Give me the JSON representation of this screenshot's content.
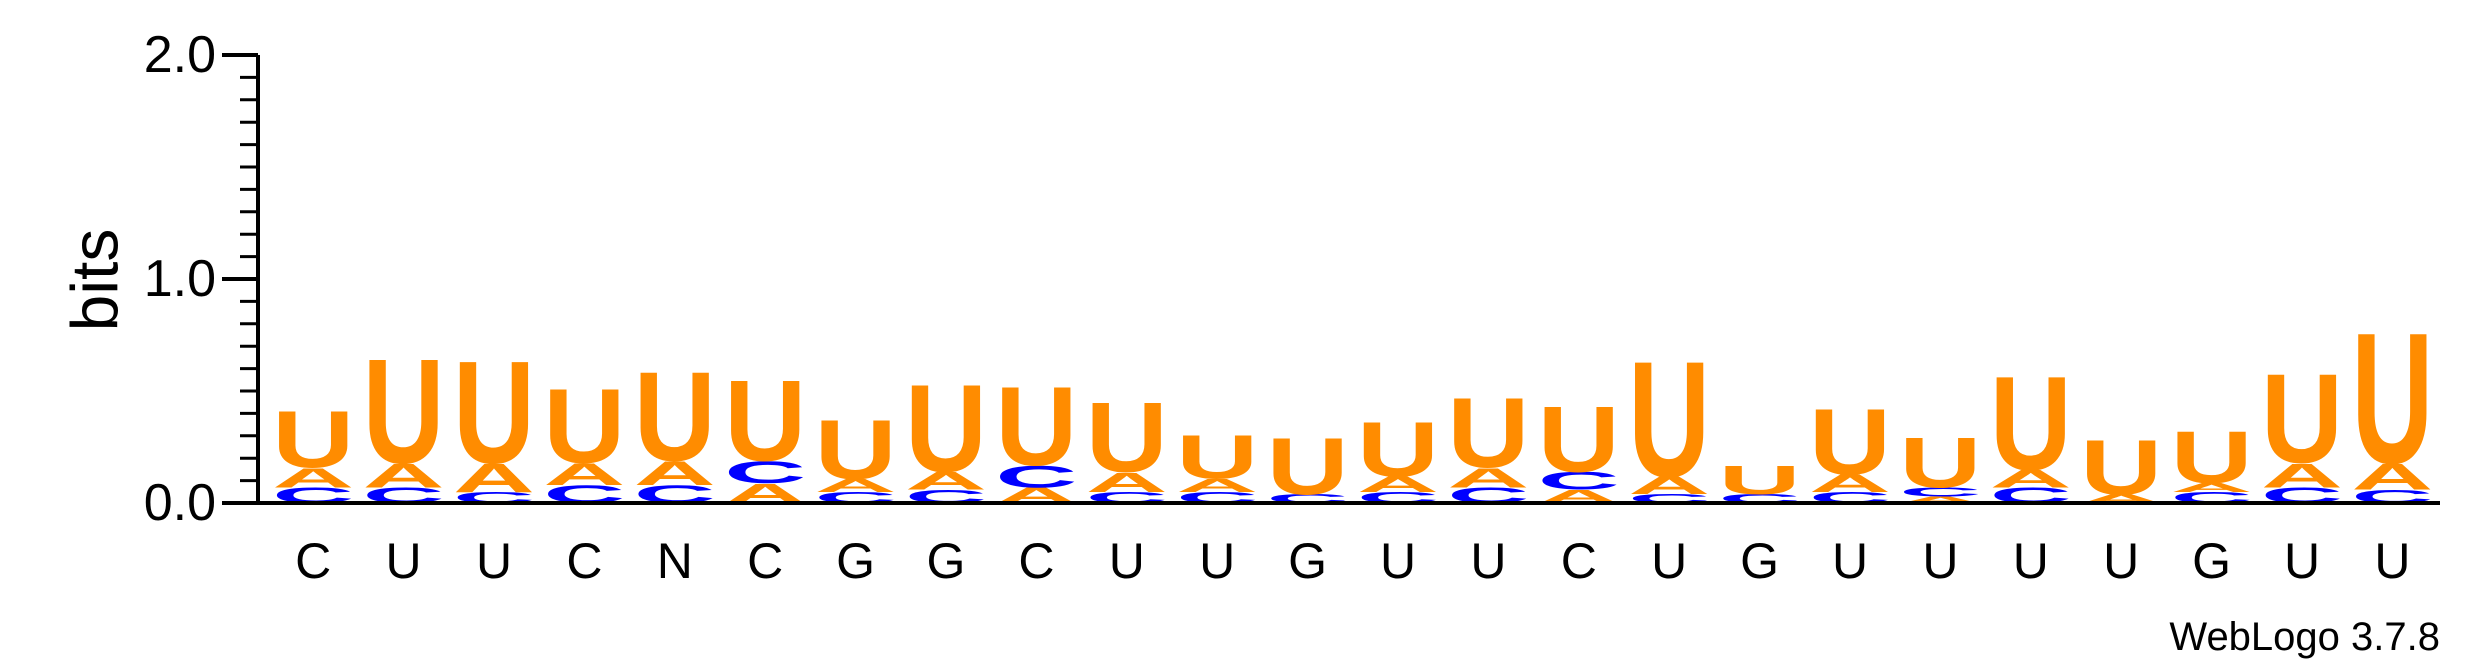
{
  "chart_data": {
    "type": "sequence-logo",
    "ylabel": "bits",
    "ylim": [
      0,
      2.0
    ],
    "yticks": [
      "0.0",
      "1.0",
      "2.0"
    ],
    "credit": "WebLogo 3.7.8",
    "colors": {
      "A": "#ff8c00",
      "U": "#ff8c00",
      "C": "#0000ff",
      "G": "#ff8c00"
    },
    "positions": [
      {
        "label": "C",
        "letters": [
          [
            "C",
            0.07
          ],
          [
            "A",
            0.09
          ],
          [
            "U",
            0.26
          ]
        ]
      },
      {
        "label": "U",
        "letters": [
          [
            "C",
            0.07
          ],
          [
            "A",
            0.11
          ],
          [
            "U",
            0.48
          ]
        ]
      },
      {
        "label": "U",
        "letters": [
          [
            "C",
            0.05
          ],
          [
            "A",
            0.13
          ],
          [
            "U",
            0.47
          ]
        ]
      },
      {
        "label": "C",
        "letters": [
          [
            "C",
            0.08
          ],
          [
            "A",
            0.1
          ],
          [
            "U",
            0.34
          ]
        ]
      },
      {
        "label": "N",
        "letters": [
          [
            "C",
            0.08
          ],
          [
            "A",
            0.11
          ],
          [
            "U",
            0.41
          ]
        ]
      },
      {
        "label": "C",
        "letters": [
          [
            "A",
            0.09
          ],
          [
            "C",
            0.1
          ],
          [
            "U",
            0.37
          ]
        ]
      },
      {
        "label": "G",
        "letters": [
          [
            "C",
            0.05
          ],
          [
            "A",
            0.06
          ],
          [
            "U",
            0.27
          ]
        ]
      },
      {
        "label": "G",
        "letters": [
          [
            "C",
            0.06
          ],
          [
            "A",
            0.08
          ],
          [
            "U",
            0.4
          ]
        ]
      },
      {
        "label": "C",
        "letters": [
          [
            "A",
            0.07
          ],
          [
            "C",
            0.1
          ],
          [
            "U",
            0.36
          ]
        ]
      },
      {
        "label": "U",
        "letters": [
          [
            "C",
            0.05
          ],
          [
            "A",
            0.09
          ],
          [
            "U",
            0.32
          ]
        ]
      },
      {
        "label": "U",
        "letters": [
          [
            "C",
            0.05
          ],
          [
            "A",
            0.06
          ],
          [
            "U",
            0.2
          ]
        ]
      },
      {
        "label": "G",
        "letters": [
          [
            "C",
            0.04
          ],
          [
            "U",
            0.26
          ]
        ]
      },
      {
        "label": "U",
        "letters": [
          [
            "C",
            0.05
          ],
          [
            "A",
            0.07
          ],
          [
            "U",
            0.25
          ]
        ]
      },
      {
        "label": "U",
        "letters": [
          [
            "C",
            0.07
          ],
          [
            "A",
            0.09
          ],
          [
            "U",
            0.32
          ]
        ]
      },
      {
        "label": "C",
        "letters": [
          [
            "A",
            0.06
          ],
          [
            "C",
            0.08
          ],
          [
            "U",
            0.3
          ]
        ]
      },
      {
        "label": "U",
        "letters": [
          [
            "C",
            0.04
          ],
          [
            "A",
            0.08
          ],
          [
            "U",
            0.53
          ]
        ]
      },
      {
        "label": "G",
        "letters": [
          [
            "C",
            0.04
          ],
          [
            "U",
            0.13
          ]
        ]
      },
      {
        "label": "U",
        "letters": [
          [
            "C",
            0.05
          ],
          [
            "A",
            0.08
          ],
          [
            "U",
            0.3
          ]
        ]
      },
      {
        "label": "U",
        "letters": [
          [
            "A",
            0.03
          ],
          [
            "C",
            0.04
          ],
          [
            "U",
            0.23
          ]
        ]
      },
      {
        "label": "U",
        "letters": [
          [
            "C",
            0.07
          ],
          [
            "A",
            0.08
          ],
          [
            "U",
            0.43
          ]
        ]
      },
      {
        "label": "U",
        "letters": [
          [
            "A",
            0.04
          ],
          [
            "U",
            0.25
          ]
        ]
      },
      {
        "label": "G",
        "letters": [
          [
            "C",
            0.05
          ],
          [
            "A",
            0.04
          ],
          [
            "U",
            0.24
          ]
        ]
      },
      {
        "label": "U",
        "letters": [
          [
            "C",
            0.07
          ],
          [
            "A",
            0.11
          ],
          [
            "U",
            0.41
          ]
        ]
      },
      {
        "label": "U",
        "letters": [
          [
            "C",
            0.06
          ],
          [
            "A",
            0.12
          ],
          [
            "U",
            0.6
          ]
        ]
      }
    ]
  }
}
